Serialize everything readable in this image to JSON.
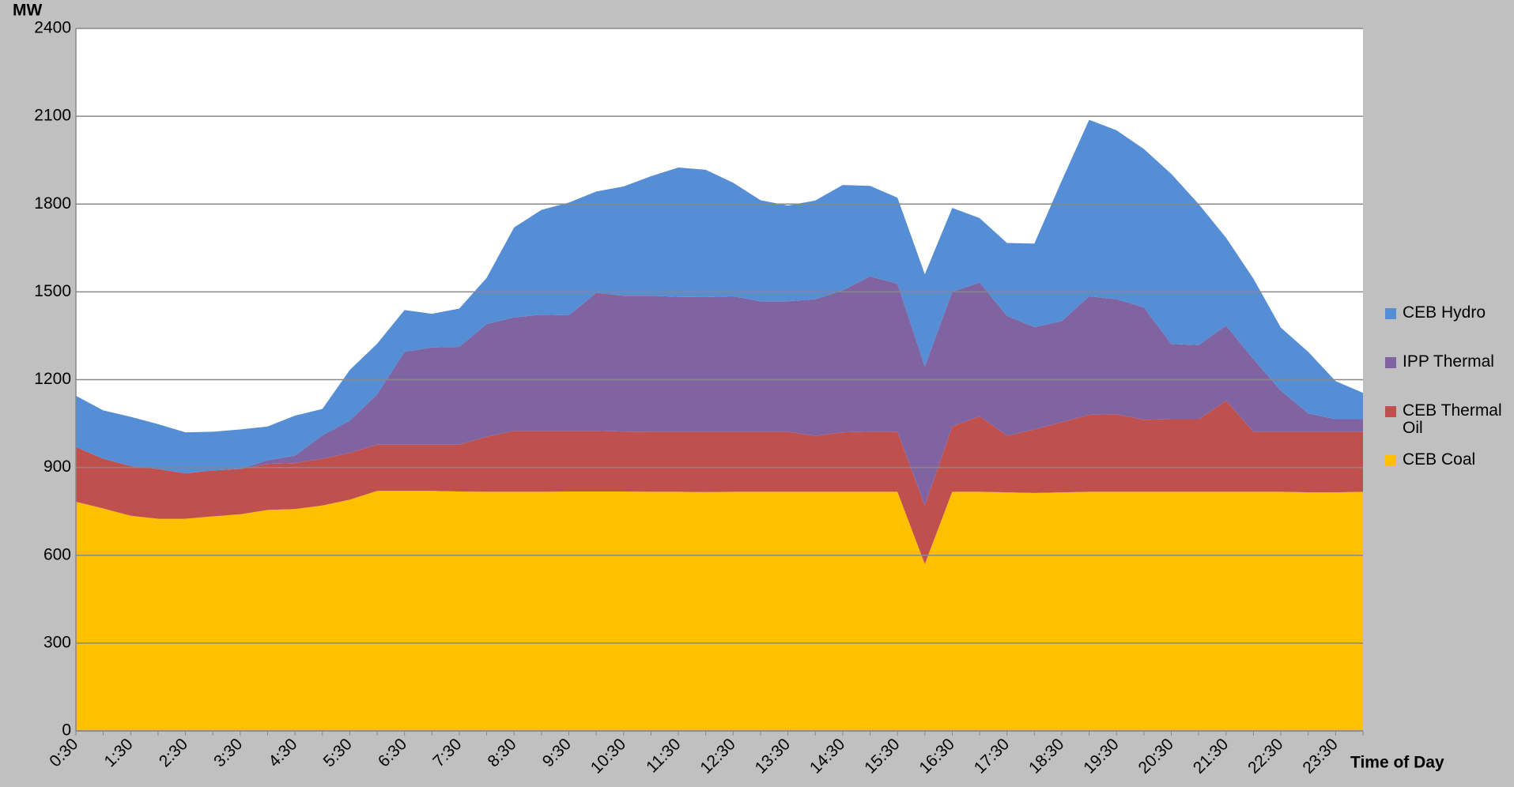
{
  "chart_data": {
    "type": "stacked-area",
    "y_label": "MW",
    "x_label": "Time of Day",
    "categories": [
      "0:30",
      null,
      "1:30",
      null,
      "2:30",
      null,
      "3:30",
      null,
      "4:30",
      null,
      "5:30",
      null,
      "6:30",
      null,
      "7:30",
      null,
      "8:30",
      null,
      "9:30",
      null,
      "10:30",
      null,
      "11:30",
      null,
      "12:30",
      null,
      "13:30",
      null,
      "14:30",
      null,
      "15:30",
      null,
      "16:30",
      null,
      "17:30",
      null,
      "18:30",
      null,
      "19:30",
      null,
      "20:30",
      null,
      "21:30",
      null,
      "22:30",
      null,
      "23:30",
      null
    ],
    "series": [
      {
        "name": "CEB Hydro",
        "color": "#558ed5",
        "values": [
          175,
          165,
          168,
          153,
          140,
          132,
          135,
          115,
          137,
          90,
          173,
          173,
          143,
          115,
          131,
          158,
          307,
          358,
          385,
          346,
          373,
          408,
          442,
          435,
          388,
          345,
          327,
          337,
          360,
          309,
          294,
          315,
          287,
          220,
          249,
          285,
          480,
          603,
          577,
          541,
          581,
          482,
          300,
          275,
          215,
          210,
          130,
          90
        ]
      },
      {
        "name": "IPP Thermal",
        "color": "#8064a2",
        "values": [
          0,
          0,
          0,
          0,
          0,
          0,
          0,
          13,
          25,
          80,
          110,
          172,
          317,
          332,
          334,
          385,
          388,
          397,
          395,
          472,
          464,
          465,
          461,
          460,
          463,
          446,
          446,
          467,
          485,
          531,
          506,
          475,
          460,
          457,
          410,
          350,
          345,
          405,
          393,
          384,
          257,
          253,
          257,
          248,
          141,
          63,
          43,
          43
        ]
      },
      {
        "name": "CEB Thermal Oil",
        "color": "#c0504d",
        "values": [
          187,
          170,
          170,
          170,
          155,
          157,
          155,
          157,
          157,
          160,
          160,
          158,
          158,
          158,
          160,
          188,
          208,
          208,
          207,
          207,
          205,
          205,
          205,
          206,
          205,
          205,
          205,
          191,
          203,
          205,
          205,
          200,
          223,
          258,
          193,
          217,
          240,
          263,
          265,
          246,
          248,
          248,
          311,
          205,
          205,
          207,
          207,
          205
        ]
      },
      {
        "name": "CEB Coal",
        "color": "#ffc000",
        "values": [
          783,
          760,
          735,
          725,
          725,
          733,
          740,
          755,
          758,
          770,
          790,
          820,
          820,
          820,
          818,
          817,
          817,
          817,
          818,
          818,
          818,
          817,
          817,
          816,
          817,
          817,
          817,
          817,
          817,
          817,
          817,
          570,
          817,
          817,
          815,
          813,
          815,
          817,
          817,
          817,
          817,
          817,
          817,
          817,
          817,
          815,
          815,
          817
        ]
      }
    ],
    "ylim": [
      0,
      2400
    ],
    "yticks": [
      0,
      300,
      600,
      900,
      1200,
      1500,
      1800,
      2100,
      2400
    ],
    "grid": true
  }
}
